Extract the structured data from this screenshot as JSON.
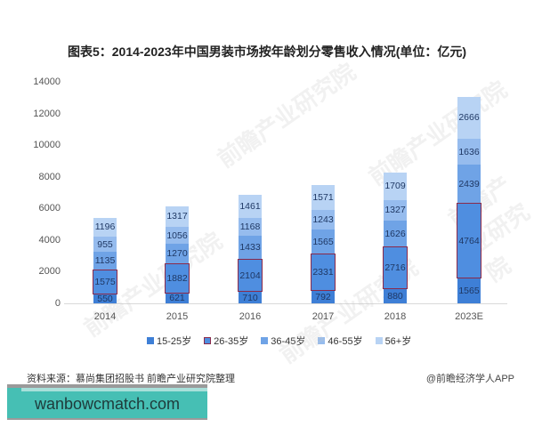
{
  "title": "图表5：2014-2023年中国男装市场按年龄划分零售收入情况(单位：亿元)",
  "chart_data": {
    "type": "bar",
    "stacked": true,
    "title": "图表5：2014-2023年中国男装市场按年龄划分零售收入情况(单位：亿元)",
    "xlabel": "",
    "ylabel": "",
    "ylim": [
      0,
      14000
    ],
    "yticks": [
      "0",
      "2000",
      "4000",
      "6000",
      "8000",
      "10000",
      "12000",
      "14000"
    ],
    "categories": [
      "2014",
      "2015",
      "2016",
      "2017",
      "2018",
      "2023E"
    ],
    "series": [
      {
        "name": "15-25岁",
        "color": "#3e7fd6",
        "values": [
          550,
          621,
          710,
          792,
          880,
          1565
        ]
      },
      {
        "name": "26-35岁",
        "color": "#4f8ee0",
        "border": "#8b2a4a",
        "values": [
          1575,
          1882,
          2104,
          2331,
          2716,
          4764
        ]
      },
      {
        "name": "36-45岁",
        "color": "#6fa3e6",
        "values": [
          1135,
          1270,
          1433,
          1565,
          1626,
          2439
        ]
      },
      {
        "name": "46-55岁",
        "color": "#96bcee",
        "values": [
          955,
          1056,
          1168,
          1243,
          1327,
          1636
        ]
      },
      {
        "name": "56+岁",
        "color": "#b8d3f4",
        "values": [
          1196,
          1317,
          1461,
          1571,
          1709,
          2666
        ]
      }
    ],
    "grid": false,
    "legend_position": "bottom"
  },
  "legend": [
    "15-25岁",
    "26-35岁",
    "36-45岁",
    "46-55岁",
    "56+岁"
  ],
  "source": "资料来源：慕尚集团招股书 前瞻产业研究院整理",
  "credit": "@前瞻经济学人APP",
  "banner": "wanbowcmatch.com",
  "watermark": "前瞻产业研究院"
}
